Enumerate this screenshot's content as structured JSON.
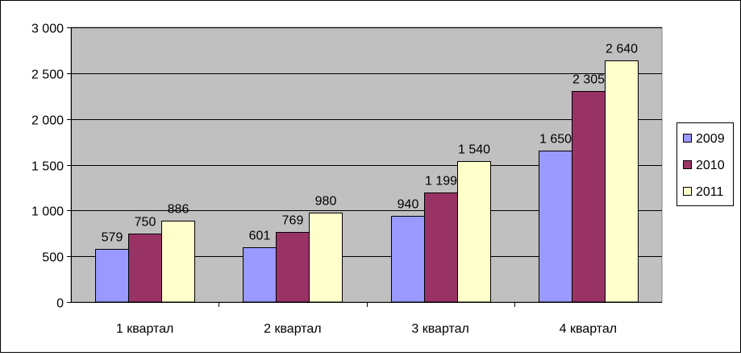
{
  "chart_data": {
    "type": "bar",
    "categories": [
      "1 квартал",
      "2 квартал",
      "3 квартал",
      "4 квартал"
    ],
    "series": [
      {
        "name": "2009",
        "values": [
          579,
          601,
          940,
          1650
        ],
        "value_labels": [
          "579",
          "601",
          "940",
          "1 650"
        ],
        "color": "#9999FF"
      },
      {
        "name": "2010",
        "values": [
          750,
          769,
          1199,
          2305
        ],
        "value_labels": [
          "750",
          "769",
          "1 199",
          "2 305"
        ],
        "color": "#993366"
      },
      {
        "name": "2011",
        "values": [
          886,
          980,
          1540,
          2640
        ],
        "value_labels": [
          "886",
          "980",
          "1 540",
          "2 640"
        ],
        "color": "#FFFFCC"
      }
    ],
    "yticks": [
      "0",
      "500",
      "1 000",
      "1 500",
      "2 000",
      "2 500",
      "3 000"
    ],
    "ylim": [
      0,
      3000
    ],
    "ystep": 500,
    "grid": true,
    "legend_position": "right",
    "plot_background": "#C0C0C0",
    "title": "",
    "xlabel": "",
    "ylabel": ""
  }
}
